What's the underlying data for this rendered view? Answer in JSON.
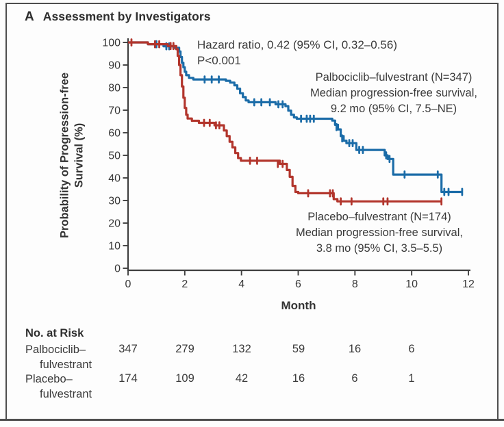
{
  "panel": {
    "letter": "A",
    "title": "Assessment by Investigators"
  },
  "chart_data": {
    "type": "line",
    "subtype": "kaplan-meier-step",
    "title": "Assessment by Investigators",
    "xlabel": "Month",
    "ylabel": "Probability of Progression-free Survival (%)",
    "ylabel_lines": [
      "Probability of Progression-free",
      "Survival (%)"
    ],
    "xlim": [
      0,
      12
    ],
    "ylim": [
      0,
      100
    ],
    "xticks": [
      0,
      2,
      4,
      6,
      8,
      10,
      12
    ],
    "yticks": [
      0,
      10,
      20,
      30,
      40,
      50,
      60,
      70,
      80,
      90,
      100
    ],
    "grid": false,
    "legend_position": "annotated-on-plot",
    "annotations": {
      "hazard_ratio": "Hazard ratio, 0.42 (95% CI, 0.32–0.56)",
      "p_value": "P<0.001"
    },
    "series": [
      {
        "name": "Palbociclib–fulvestrant",
        "n": 347,
        "color": "#1b6ca8",
        "label_lines": [
          "Palbociclib–fulvestrant (N=347)",
          "Median progression-free survival,",
          "9.2 mo (95% CI, 7.5–NE)"
        ],
        "steps": [
          [
            0,
            100
          ],
          [
            0.7,
            99.2
          ],
          [
            1.25,
            98.3
          ],
          [
            1.6,
            97.6
          ],
          [
            1.8,
            96
          ],
          [
            1.85,
            93.5
          ],
          [
            1.9,
            91
          ],
          [
            1.95,
            89
          ],
          [
            2.0,
            87
          ],
          [
            2.05,
            85.5
          ],
          [
            2.15,
            84.3
          ],
          [
            2.3,
            83.6
          ],
          [
            3.45,
            83
          ],
          [
            3.6,
            82.2
          ],
          [
            3.75,
            81
          ],
          [
            3.85,
            79.5
          ],
          [
            3.95,
            77.5
          ],
          [
            4.05,
            75.8
          ],
          [
            4.15,
            74.3
          ],
          [
            4.25,
            73.5
          ],
          [
            5.2,
            72.6
          ],
          [
            5.55,
            71.8
          ],
          [
            5.65,
            69.8
          ],
          [
            5.75,
            68
          ],
          [
            5.85,
            66.8
          ],
          [
            5.95,
            66.2
          ],
          [
            7.2,
            65.4
          ],
          [
            7.3,
            63.5
          ],
          [
            7.4,
            61.5
          ],
          [
            7.5,
            58.5
          ],
          [
            7.6,
            56.5
          ],
          [
            7.7,
            55.4
          ],
          [
            8.05,
            52.4
          ],
          [
            9.05,
            50
          ],
          [
            9.15,
            48.4
          ],
          [
            9.35,
            41.5
          ],
          [
            11.05,
            33.8
          ],
          [
            11.78,
            33.8
          ]
        ],
        "censors": [
          [
            1.0,
            99.2
          ],
          [
            1.35,
            98.3
          ],
          [
            1.45,
            98.3
          ],
          [
            2.7,
            83.6
          ],
          [
            2.95,
            83.6
          ],
          [
            3.2,
            83.6
          ],
          [
            4.45,
            73.5
          ],
          [
            4.7,
            73.5
          ],
          [
            5.0,
            73.5
          ],
          [
            5.3,
            72.6
          ],
          [
            5.45,
            72.6
          ],
          [
            6.1,
            66.2
          ],
          [
            6.3,
            66.2
          ],
          [
            6.42,
            66.2
          ],
          [
            6.55,
            66.2
          ],
          [
            7.35,
            62.5
          ],
          [
            7.55,
            57.5
          ],
          [
            7.8,
            55.4
          ],
          [
            7.92,
            55.4
          ],
          [
            8.15,
            52.4
          ],
          [
            8.28,
            52.4
          ],
          [
            9.1,
            50
          ],
          [
            9.22,
            48.4
          ],
          [
            9.75,
            41.5
          ],
          [
            10.92,
            41.5
          ],
          [
            11.15,
            33.8
          ],
          [
            11.3,
            33.8
          ],
          [
            11.78,
            33.8
          ]
        ],
        "median_pfs_months": 9.2
      },
      {
        "name": "Placebo–fulvestrant",
        "n": 174,
        "color": "#b2352c",
        "label_lines": [
          "Placebo–fulvestrant (N=174)",
          "Median progression-free survival,",
          "3.8 mo (95% CI, 3.5–5.5)"
        ],
        "steps": [
          [
            0,
            100
          ],
          [
            0.7,
            99.2
          ],
          [
            1.4,
            98.4
          ],
          [
            1.7,
            97
          ],
          [
            1.75,
            94
          ],
          [
            1.8,
            90
          ],
          [
            1.85,
            85.5
          ],
          [
            1.9,
            80.5
          ],
          [
            1.95,
            75.5
          ],
          [
            2.0,
            71
          ],
          [
            2.05,
            68
          ],
          [
            2.1,
            66.3
          ],
          [
            2.25,
            65.3
          ],
          [
            2.5,
            64.4
          ],
          [
            3.05,
            63.3
          ],
          [
            3.38,
            61
          ],
          [
            3.48,
            58.5
          ],
          [
            3.58,
            56
          ],
          [
            3.68,
            53.5
          ],
          [
            3.78,
            51
          ],
          [
            3.88,
            48.8
          ],
          [
            3.98,
            47.6
          ],
          [
            5.35,
            46.2
          ],
          [
            5.6,
            43.5
          ],
          [
            5.7,
            40.5
          ],
          [
            5.8,
            36.5
          ],
          [
            5.9,
            33.8
          ],
          [
            6.0,
            33.2
          ],
          [
            7.25,
            30.6
          ],
          [
            7.38,
            29.6
          ],
          [
            11.05,
            29.6
          ]
        ],
        "censors": [
          [
            0.12,
            100
          ],
          [
            0.95,
            99.2
          ],
          [
            1.1,
            99.2
          ],
          [
            1.5,
            98.4
          ],
          [
            1.6,
            98.4
          ],
          [
            2.68,
            64.4
          ],
          [
            2.88,
            64.4
          ],
          [
            3.1,
            63.3
          ],
          [
            3.22,
            63.3
          ],
          [
            4.3,
            47.6
          ],
          [
            4.55,
            47.6
          ],
          [
            5.28,
            46.2
          ],
          [
            5.45,
            46.2
          ],
          [
            6.35,
            33.2
          ],
          [
            7.12,
            33.2
          ],
          [
            7.22,
            33.2
          ],
          [
            7.5,
            29.6
          ],
          [
            7.88,
            29.6
          ],
          [
            9.0,
            29.6
          ],
          [
            9.15,
            29.6
          ],
          [
            11.05,
            29.6
          ]
        ],
        "median_pfs_months": 3.8
      }
    ],
    "risk_table": {
      "title": "No. at Risk",
      "months": [
        0,
        2,
        4,
        6,
        8,
        10
      ],
      "rows": [
        {
          "label": [
            "Palbociclib–",
            "fulvestrant"
          ],
          "values": [
            347,
            279,
            132,
            59,
            16,
            6
          ]
        },
        {
          "label": [
            "Placebo–",
            "fulvestrant"
          ],
          "values": [
            174,
            109,
            42,
            16,
            6,
            1
          ]
        }
      ]
    }
  }
}
